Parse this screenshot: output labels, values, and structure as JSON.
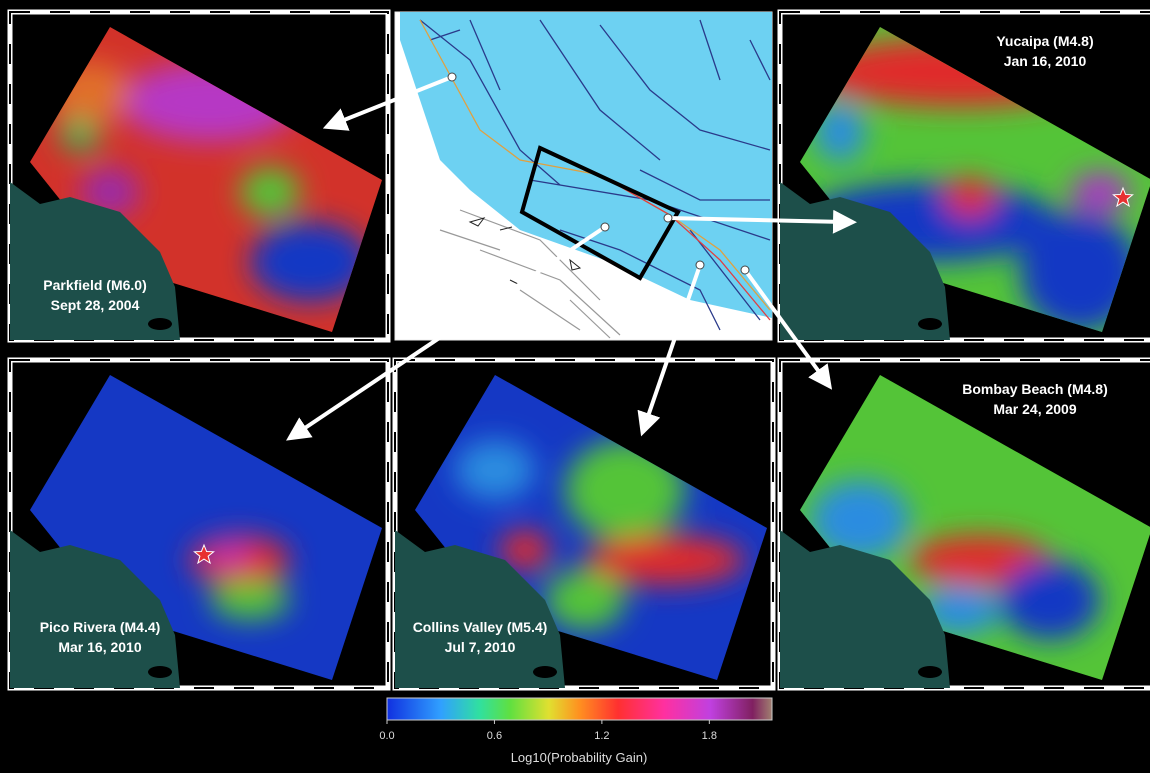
{
  "panels": [
    {
      "title": "Parkfield (M6.0)",
      "date": "Sept 28, 2004"
    },
    {
      "title": "Yucaipa (M4.8)",
      "date": "Jan 16, 2010"
    },
    {
      "title": "Pico Rivera (M4.4)",
      "date": "Mar 16, 2010"
    },
    {
      "title": "Collins Valley (M5.4)",
      "date": "Jul 7, 2010"
    },
    {
      "title": "Bombay Beach (M4.8)",
      "date": "Mar 24, 2009"
    }
  ],
  "colorbar": {
    "label": "Log10(Probability Gain)",
    "lim": [
      0,
      2.15
    ],
    "ticks": [
      {
        "value": 0,
        "label": "0.0"
      },
      0.6,
      1.2,
      1.8
    ]
  }
}
